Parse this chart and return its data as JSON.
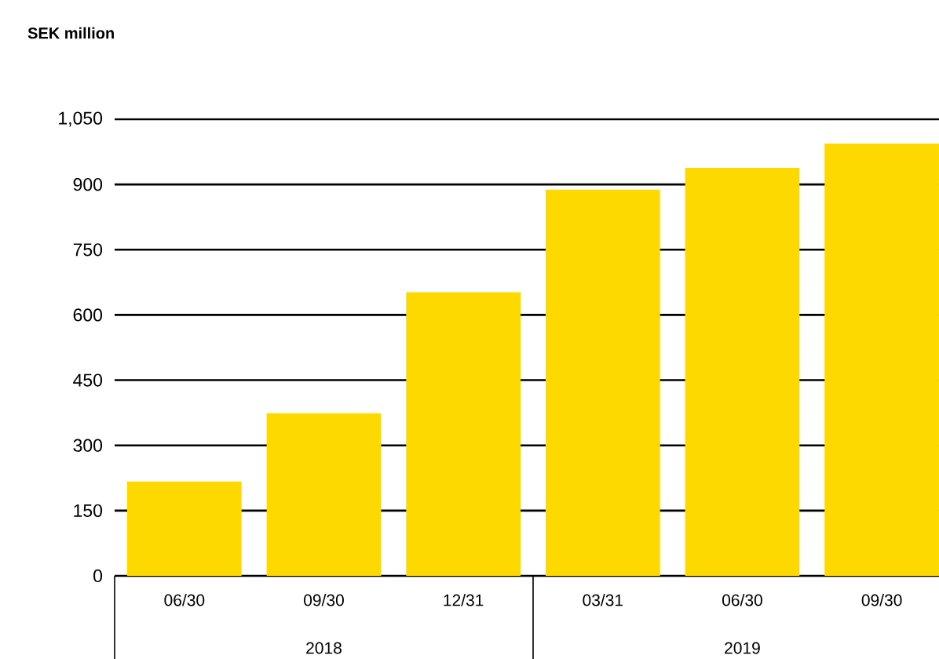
{
  "chart_data": {
    "type": "bar",
    "title": "SEK million",
    "categories": [
      "06/30",
      "09/30",
      "12/31",
      "03/31",
      "06/30",
      "09/30"
    ],
    "values": [
      217,
      374,
      652,
      888,
      938,
      994
    ],
    "color": "#fdd900",
    "ylim": [
      0,
      1050
    ],
    "yticks": [
      0,
      150,
      300,
      450,
      600,
      750,
      900,
      {
        "value": 1050,
        "label": "1,050"
      }
    ],
    "grid": "y",
    "annotations": [
      "2018",
      "2019"
    ]
  }
}
